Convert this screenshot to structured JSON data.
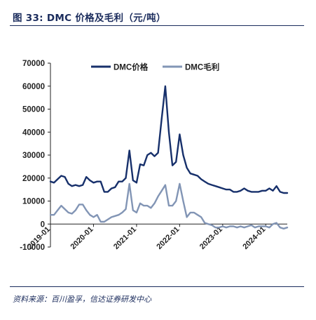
{
  "header": {
    "title": "图 33:  DMC 价格及毛利（元/吨）"
  },
  "footer": {
    "source": "资料来源：百川盈孚，信达证券研发中心"
  },
  "colors": {
    "price": "#17306b",
    "margin": "#8295b5",
    "text": "#1a2b5c"
  },
  "chart_data": {
    "type": "line",
    "title": "",
    "xlabel": "",
    "ylabel": "",
    "ylim": [
      -10000,
      70000
    ],
    "y_ticks": [
      -10000,
      0,
      10000,
      20000,
      30000,
      40000,
      50000,
      60000,
      70000
    ],
    "x_ticks": [
      "2019-01",
      "2020-01",
      "2021-01",
      "2022-01",
      "2023-01",
      "2024-01"
    ],
    "legend_position": "top-center",
    "x": [
      "2019-01",
      "2019-02",
      "2019-03",
      "2019-04",
      "2019-05",
      "2019-06",
      "2019-07",
      "2019-08",
      "2019-09",
      "2019-10",
      "2019-11",
      "2019-12",
      "2020-01",
      "2020-02",
      "2020-03",
      "2020-04",
      "2020-05",
      "2020-06",
      "2020-07",
      "2020-08",
      "2020-09",
      "2020-10",
      "2020-11",
      "2020-12",
      "2021-01",
      "2021-02",
      "2021-03",
      "2021-04",
      "2021-05",
      "2021-06",
      "2021-07",
      "2021-08",
      "2021-09",
      "2021-10",
      "2021-11",
      "2021-12",
      "2022-01",
      "2022-02",
      "2022-03",
      "2022-04",
      "2022-05",
      "2022-06",
      "2022-07",
      "2022-08",
      "2022-09",
      "2022-10",
      "2022-11",
      "2022-12",
      "2023-01",
      "2023-02",
      "2023-03",
      "2023-04",
      "2023-05",
      "2023-06",
      "2023-07",
      "2023-08",
      "2023-09",
      "2023-10",
      "2023-11",
      "2023-12",
      "2024-01",
      "2024-02",
      "2024-03",
      "2024-04",
      "2024-05",
      "2024-06",
      "2024-07"
    ],
    "series": [
      {
        "name": "DMC价格",
        "values": [
          18500,
          18000,
          19500,
          21000,
          20500,
          17500,
          16500,
          17000,
          16500,
          17000,
          20500,
          19000,
          18000,
          18500,
          18500,
          14000,
          14000,
          15500,
          16000,
          18500,
          18500,
          20000,
          32000,
          19000,
          18000,
          26000,
          25500,
          30000,
          31000,
          29500,
          31000,
          46000,
          60000,
          40000,
          25500,
          27000,
          39000,
          30000,
          24500,
          22000,
          21500,
          21000,
          19500,
          18500,
          17500,
          17000,
          16500,
          16000,
          15500,
          15000,
          15000,
          14000,
          14000,
          14500,
          15500,
          14500,
          14000,
          14000,
          14000,
          14500,
          14500,
          15500,
          14500,
          16500,
          14000,
          13500,
          13500
        ]
      },
      {
        "name": "DMC毛利",
        "values": [
          4000,
          4000,
          6000,
          8000,
          6500,
          5000,
          4500,
          6000,
          8500,
          8500,
          6000,
          4000,
          3000,
          4000,
          1000,
          1000,
          2000,
          3000,
          3500,
          4000,
          5000,
          6500,
          17500,
          6000,
          5000,
          9000,
          8000,
          8000,
          7000,
          9000,
          12000,
          14500,
          17000,
          8000,
          8000,
          10000,
          17500,
          10000,
          3000,
          5000,
          5000,
          4000,
          3000,
          500,
          0,
          -500,
          -1500,
          -1500,
          -1000,
          -1500,
          -1000,
          -1000,
          -1500,
          -1000,
          -1500,
          -1000,
          -500,
          -1500,
          -1000,
          -1000,
          -1000,
          -1500,
          0,
          500,
          -1500,
          -2000,
          -1500
        ]
      }
    ]
  }
}
